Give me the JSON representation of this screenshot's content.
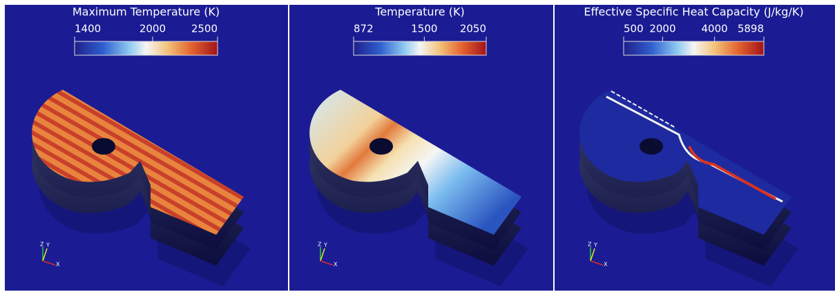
{
  "panels": [
    {
      "colorbar": {
        "title": "Maximum Temperature (K)",
        "ticks": [
          1400,
          2000,
          2500
        ]
      }
    },
    {
      "colorbar": {
        "title": "Temperature (K)",
        "ticks": [
          872,
          1500,
          2050
        ]
      }
    },
    {
      "colorbar": {
        "title": "Effective Specific Heat Capacity (J/kg/K)",
        "ticks": [
          500,
          2000,
          4000,
          5898
        ]
      }
    }
  ],
  "orientation_axes": {
    "z": "Z",
    "y": "Y",
    "x": "X"
  }
}
